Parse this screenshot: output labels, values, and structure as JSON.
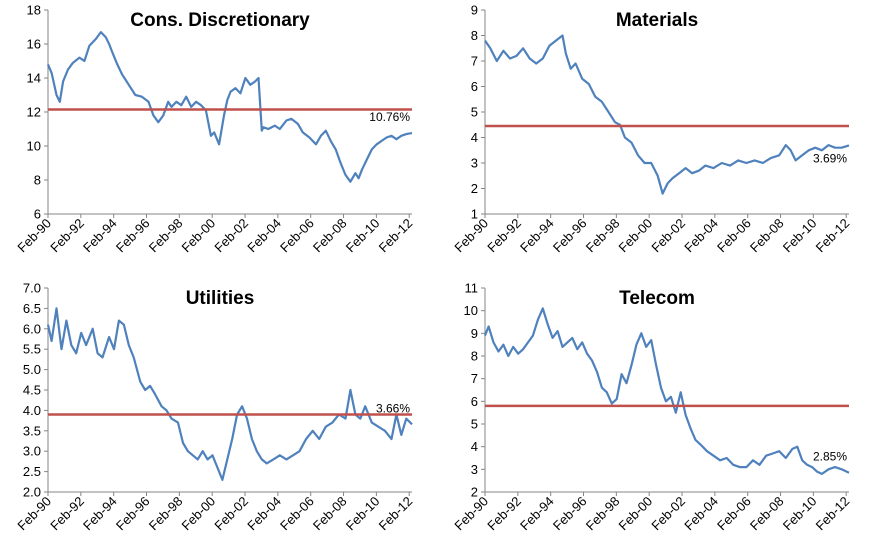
{
  "chart_data": [
    {
      "type": "line",
      "title": "Cons. Discretionary",
      "x_ticks": [
        "Feb-90",
        "Feb-92",
        "Feb-94",
        "Feb-96",
        "Feb-98",
        "Feb-00",
        "Feb-02",
        "Feb-04",
        "Feb-06",
        "Feb-08",
        "Feb-10",
        "Feb-12"
      ],
      "xlim": [
        1990.08,
        2012.25
      ],
      "ylim": [
        6,
        18
      ],
      "y_ticks": [
        "6",
        "8",
        "10",
        "12",
        "14",
        "16",
        "18"
      ],
      "average_line": 12.15,
      "annotation": "10.76%",
      "colors": {
        "series": "#4f81bd",
        "average": "#c0504d"
      },
      "series": [
        {
          "x": [
            1990.08,
            1990.3,
            1990.6,
            1990.8,
            1991.0,
            1991.3,
            1991.6,
            1992.0,
            1992.3,
            1992.6,
            1993.0,
            1993.3,
            1993.6,
            1993.8,
            1994.0,
            1994.3,
            1994.6,
            1995.0,
            1995.4,
            1995.8,
            1996.2,
            1996.5,
            1996.8,
            1997.1,
            1997.4,
            1997.6,
            1997.9,
            1998.2,
            1998.5,
            1998.8,
            1999.1,
            1999.4,
            1999.7,
            2000.0,
            2000.2,
            2000.5,
            2000.8,
            2001.0,
            2001.2,
            2001.5,
            2001.8,
            2002.1,
            2002.4,
            2002.7,
            2002.9,
            2003.1,
            2003.2,
            2003.5,
            2003.9,
            2004.2,
            2004.6,
            2004.9,
            2005.3,
            2005.6,
            2006.0,
            2006.4,
            2006.7,
            2007.0,
            2007.3,
            2007.6,
            2007.9,
            2008.2,
            2008.5,
            2008.8,
            2009.0,
            2009.2,
            2009.5,
            2009.8,
            2010.1,
            2010.4,
            2010.7,
            2011.0,
            2011.3,
            2011.6,
            2011.9,
            2012.25
          ],
          "y": [
            14.8,
            14.3,
            13.0,
            12.6,
            13.8,
            14.5,
            14.9,
            15.2,
            15.0,
            15.9,
            16.3,
            16.7,
            16.4,
            16.0,
            15.5,
            14.8,
            14.2,
            13.6,
            13.0,
            12.9,
            12.6,
            11.8,
            11.4,
            11.8,
            12.6,
            12.3,
            12.6,
            12.4,
            12.9,
            12.3,
            12.6,
            12.4,
            12.1,
            10.6,
            10.8,
            10.1,
            11.8,
            12.7,
            13.2,
            13.4,
            13.1,
            14.0,
            13.6,
            13.8,
            14.0,
            10.9,
            11.1,
            11.0,
            11.2,
            11.0,
            11.5,
            11.6,
            11.3,
            10.8,
            10.5,
            10.1,
            10.6,
            10.9,
            10.3,
            9.8,
            9.0,
            8.3,
            7.9,
            8.4,
            8.1,
            8.6,
            9.2,
            9.8,
            10.1,
            10.3,
            10.5,
            10.6,
            10.4,
            10.6,
            10.7,
            10.76
          ]
        }
      ]
    },
    {
      "type": "line",
      "title": "Materials",
      "x_ticks": [
        "Feb-90",
        "Feb-92",
        "Feb-94",
        "Feb-96",
        "Feb-98",
        "Feb-00",
        "Feb-02",
        "Feb-04",
        "Feb-06",
        "Feb-08",
        "Feb-10",
        "Feb-12"
      ],
      "xlim": [
        1990.08,
        2012.25
      ],
      "ylim": [
        1,
        9
      ],
      "y_ticks": [
        "1",
        "2",
        "3",
        "4",
        "5",
        "6",
        "7",
        "8",
        "9"
      ],
      "average_line": 4.45,
      "annotation": "3.69%",
      "colors": {
        "series": "#4f81bd",
        "average": "#c0504d"
      },
      "series": [
        {
          "x": [
            1990.08,
            1990.4,
            1990.8,
            1991.2,
            1991.6,
            1992.0,
            1992.4,
            1992.8,
            1993.2,
            1993.6,
            1994.0,
            1994.4,
            1994.8,
            1995.0,
            1995.3,
            1995.6,
            1996.0,
            1996.4,
            1996.8,
            1997.2,
            1997.6,
            1998.0,
            1998.3,
            1998.6,
            1999.0,
            1999.4,
            1999.8,
            2000.2,
            2000.6,
            2000.9,
            2001.2,
            2001.5,
            2001.9,
            2002.3,
            2002.7,
            2003.1,
            2003.5,
            2004.0,
            2004.5,
            2005.0,
            2005.5,
            2006.0,
            2006.5,
            2007.0,
            2007.5,
            2008.0,
            2008.4,
            2008.7,
            2009.0,
            2009.4,
            2009.8,
            2010.2,
            2010.6,
            2011.0,
            2011.4,
            2011.8,
            2012.25
          ],
          "y": [
            7.8,
            7.5,
            7.0,
            7.4,
            7.1,
            7.2,
            7.5,
            7.1,
            6.9,
            7.1,
            7.6,
            7.8,
            8.0,
            7.3,
            6.7,
            6.9,
            6.3,
            6.1,
            5.6,
            5.4,
            5.0,
            4.6,
            4.5,
            4.0,
            3.8,
            3.3,
            3.0,
            3.0,
            2.5,
            1.8,
            2.2,
            2.4,
            2.6,
            2.8,
            2.6,
            2.7,
            2.9,
            2.8,
            3.0,
            2.9,
            3.1,
            3.0,
            3.1,
            3.0,
            3.2,
            3.3,
            3.7,
            3.5,
            3.1,
            3.3,
            3.5,
            3.6,
            3.5,
            3.7,
            3.6,
            3.6,
            3.69
          ]
        }
      ]
    },
    {
      "type": "line",
      "title": "Utilities",
      "x_ticks": [
        "Feb-90",
        "Feb-92",
        "Feb-94",
        "Feb-96",
        "Feb-98",
        "Feb-00",
        "Feb-02",
        "Feb-04",
        "Feb-06",
        "Feb-08",
        "Feb-10",
        "Feb-12"
      ],
      "xlim": [
        1990.08,
        2012.25
      ],
      "ylim": [
        2.0,
        7.0
      ],
      "y_ticks": [
        "2.0",
        "2.5",
        "3.0",
        "3.5",
        "4.0",
        "4.5",
        "5.0",
        "5.5",
        "6.0",
        "6.5",
        "7.0"
      ],
      "average_line": 3.9,
      "annotation": "3.66%",
      "colors": {
        "series": "#4f81bd",
        "average": "#c0504d"
      },
      "series": [
        {
          "x": [
            1990.08,
            1990.3,
            1990.6,
            1990.9,
            1991.2,
            1991.5,
            1991.8,
            1992.1,
            1992.4,
            1992.8,
            1993.1,
            1993.4,
            1993.8,
            1994.1,
            1994.4,
            1994.7,
            1995.0,
            1995.3,
            1995.7,
            1996.0,
            1996.3,
            1996.6,
            1997.0,
            1997.3,
            1997.6,
            1998.0,
            1998.3,
            1998.6,
            1998.9,
            1999.2,
            1999.5,
            1999.8,
            2000.1,
            2000.4,
            2000.7,
            2001.0,
            2001.3,
            2001.6,
            2001.9,
            2002.2,
            2002.5,
            2002.8,
            2003.1,
            2003.4,
            2003.8,
            2004.2,
            2004.6,
            2005.0,
            2005.4,
            2005.8,
            2006.2,
            2006.6,
            2007.0,
            2007.4,
            2007.8,
            2008.2,
            2008.5,
            2008.8,
            2009.1,
            2009.4,
            2009.8,
            2010.2,
            2010.6,
            2011.0,
            2011.3,
            2011.6,
            2011.9,
            2012.25
          ],
          "y": [
            6.1,
            5.7,
            6.5,
            5.5,
            6.2,
            5.6,
            5.4,
            5.9,
            5.6,
            6.0,
            5.4,
            5.3,
            5.8,
            5.5,
            6.2,
            6.1,
            5.6,
            5.3,
            4.7,
            4.5,
            4.6,
            4.4,
            4.1,
            4.0,
            3.8,
            3.7,
            3.2,
            3.0,
            2.9,
            2.8,
            3.0,
            2.8,
            2.9,
            2.6,
            2.3,
            2.8,
            3.3,
            3.9,
            4.1,
            3.8,
            3.3,
            3.0,
            2.8,
            2.7,
            2.8,
            2.9,
            2.8,
            2.9,
            3.0,
            3.3,
            3.5,
            3.3,
            3.6,
            3.7,
            3.9,
            3.8,
            4.5,
            3.9,
            3.8,
            4.1,
            3.7,
            3.6,
            3.5,
            3.3,
            3.9,
            3.4,
            3.8,
            3.66
          ]
        }
      ]
    },
    {
      "type": "line",
      "title": "Telecom",
      "x_ticks": [
        "Feb-90",
        "Feb-92",
        "Feb-94",
        "Feb-96",
        "Feb-98",
        "Feb-00",
        "Feb-02",
        "Feb-04",
        "Feb-06",
        "Feb-08",
        "Feb-10",
        "Feb-12"
      ],
      "xlim": [
        1990.08,
        2012.25
      ],
      "ylim": [
        2,
        11
      ],
      "y_ticks": [
        "2",
        "3",
        "4",
        "5",
        "6",
        "7",
        "8",
        "9",
        "10",
        "11"
      ],
      "average_line": 5.8,
      "annotation": "2.85%",
      "colors": {
        "series": "#4f81bd",
        "average": "#c0504d"
      },
      "series": [
        {
          "x": [
            1990.08,
            1990.3,
            1990.6,
            1990.9,
            1991.2,
            1991.5,
            1991.8,
            1992.1,
            1992.4,
            1992.7,
            1993.0,
            1993.3,
            1993.6,
            1993.9,
            1994.2,
            1994.5,
            1994.8,
            1995.1,
            1995.4,
            1995.7,
            1996.0,
            1996.3,
            1996.6,
            1996.9,
            1997.2,
            1997.5,
            1997.8,
            1998.1,
            1998.4,
            1998.7,
            1999.0,
            1999.3,
            1999.6,
            1999.9,
            2000.2,
            2000.5,
            2000.8,
            2001.1,
            2001.4,
            2001.7,
            2002.0,
            2002.3,
            2002.6,
            2002.9,
            2003.2,
            2003.6,
            2004.0,
            2004.4,
            2004.8,
            2005.2,
            2005.6,
            2006.0,
            2006.4,
            2006.8,
            2007.2,
            2007.6,
            2008.0,
            2008.4,
            2008.8,
            2009.1,
            2009.4,
            2009.7,
            2010.0,
            2010.3,
            2010.6,
            2011.0,
            2011.4,
            2011.8,
            2012.25
          ],
          "y": [
            8.9,
            9.3,
            8.6,
            8.2,
            8.5,
            8.0,
            8.4,
            8.1,
            8.3,
            8.6,
            8.9,
            9.6,
            10.1,
            9.4,
            8.8,
            9.1,
            8.4,
            8.6,
            8.8,
            8.3,
            8.6,
            8.1,
            7.8,
            7.3,
            6.6,
            6.4,
            5.9,
            6.1,
            7.2,
            6.8,
            7.6,
            8.5,
            9.0,
            8.4,
            8.7,
            7.6,
            6.6,
            6.0,
            6.2,
            5.5,
            6.4,
            5.4,
            4.8,
            4.3,
            4.1,
            3.8,
            3.6,
            3.4,
            3.5,
            3.2,
            3.1,
            3.1,
            3.4,
            3.2,
            3.6,
            3.7,
            3.8,
            3.5,
            3.9,
            4.0,
            3.4,
            3.2,
            3.1,
            2.9,
            2.8,
            3.0,
            3.1,
            3.0,
            2.85
          ]
        }
      ]
    }
  ]
}
